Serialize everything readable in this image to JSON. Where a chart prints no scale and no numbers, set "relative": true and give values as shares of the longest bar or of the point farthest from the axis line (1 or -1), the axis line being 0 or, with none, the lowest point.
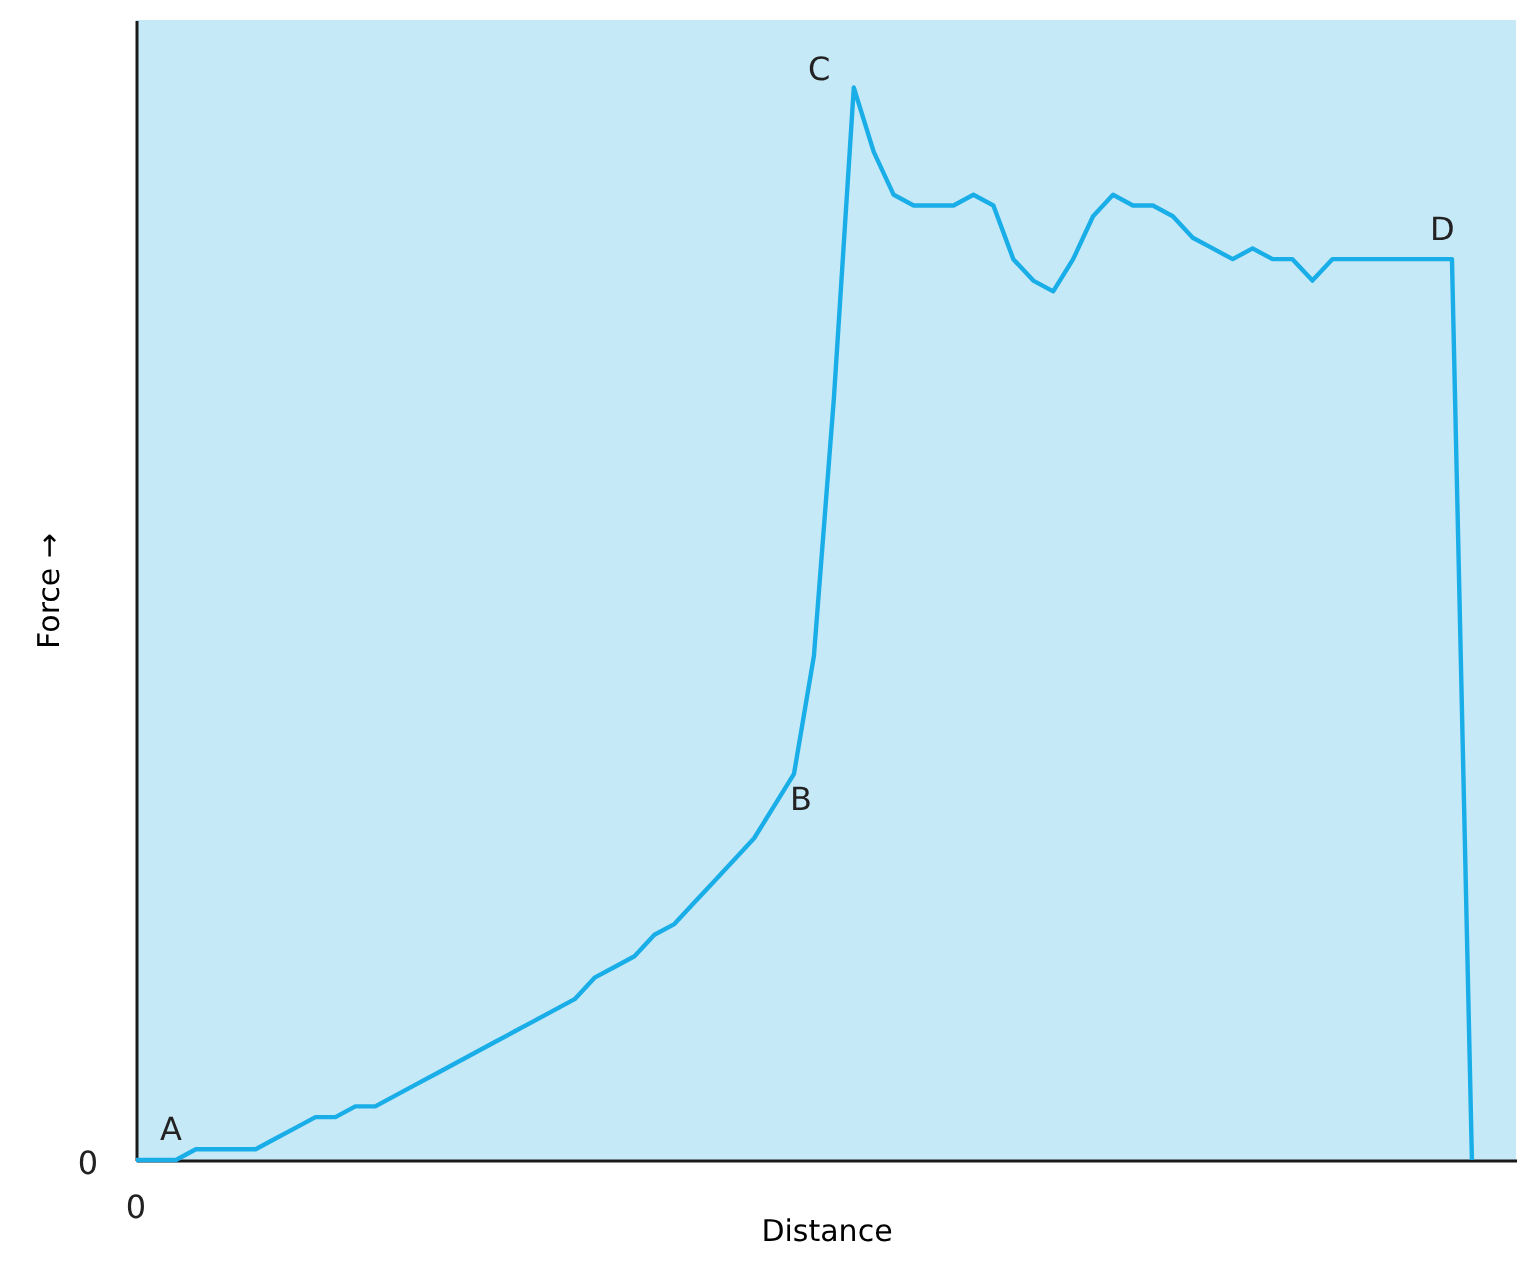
{
  "chart_data": {
    "type": "line",
    "relative": true,
    "xlabel": "Distance",
    "ylabel": "Force →",
    "categories": [
      null,
      null,
      null,
      null,
      null,
      null,
      null,
      null,
      null,
      null,
      null,
      null,
      null,
      null,
      null,
      null,
      null,
      null,
      null,
      null,
      null,
      null,
      null,
      null,
      null,
      null,
      null,
      null,
      null,
      null,
      null,
      null,
      null,
      null,
      null,
      null,
      null,
      null,
      null,
      null,
      null,
      null,
      null,
      null,
      null,
      null,
      null,
      null,
      null,
      null,
      null,
      null,
      null,
      null,
      null,
      null,
      null,
      null,
      null,
      null,
      null,
      null,
      null,
      null,
      null,
      null,
      null,
      null
    ],
    "series": [
      {
        "color": "#1aaee8",
        "values": [
          0,
          0,
          0,
          0.01,
          0.01,
          0.01,
          0.01,
          0.02,
          0.03,
          0.04,
          0.04,
          0.05,
          0.05,
          0.06,
          0.07,
          0.08,
          0.09,
          0.1,
          0.11,
          0.12,
          0.13,
          0.14,
          0.15,
          0.17,
          0.18,
          0.19,
          0.21,
          0.22,
          0.24,
          0.26,
          0.28,
          0.3,
          0.33,
          0.36,
          0.47,
          0.71,
          1.0,
          0.94,
          0.9,
          0.89,
          0.89,
          0.89,
          0.9,
          0.89,
          0.84,
          0.82,
          0.81,
          0.84,
          0.88,
          0.9,
          0.89,
          0.89,
          0.88,
          0.86,
          0.85,
          0.84,
          0.85,
          0.84,
          0.84,
          0.82,
          0.84,
          0.84,
          0.84,
          0.84,
          0.84,
          0.84,
          0.84,
          0
        ]
      }
    ],
    "annotations": [
      "A",
      "B",
      "C",
      "D",
      "0",
      "0"
    ],
    "grid": false,
    "marker": "none",
    "line_style": "solid"
  }
}
